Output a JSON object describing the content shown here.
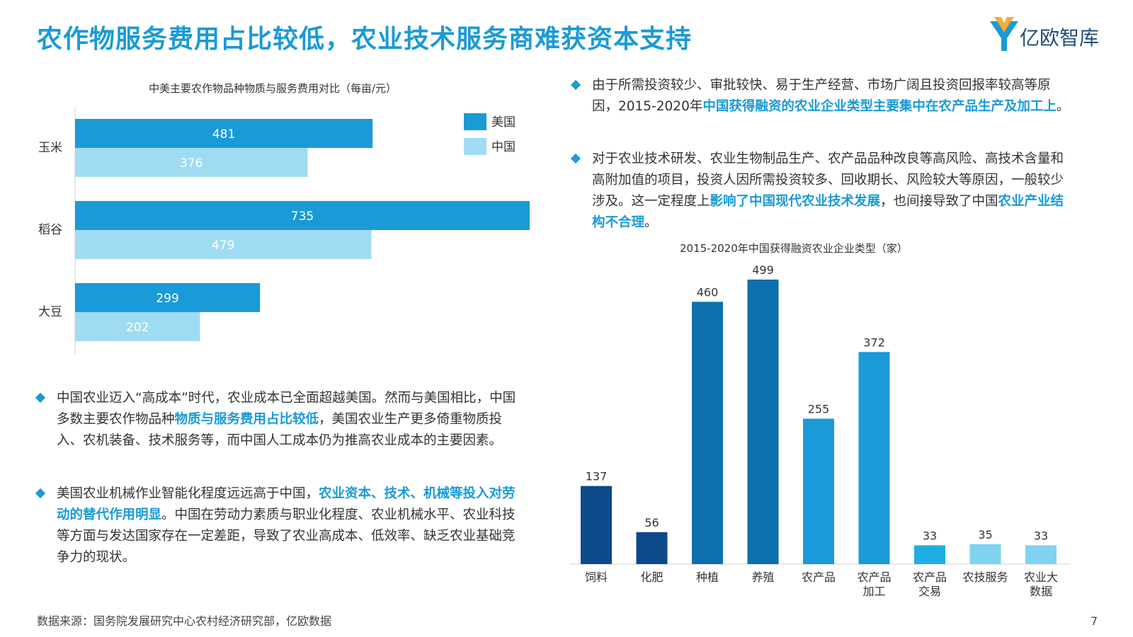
{
  "page": {
    "title": "农作物服务费用占比较低，农业技术服务商难获资本支持",
    "logo_text": "亿欧智库",
    "source": "数据来源：国务院发展研究中心农村经济研究部，亿欧数据",
    "page_number": "7",
    "colors": {
      "accent": "#1a9ad6",
      "usa": "#1a9ad6",
      "china": "#9fdcf2"
    }
  },
  "left_bullets": [
    {
      "parts": [
        {
          "text": "中国农业迈入“高成本”时代，农业成本已全面超越美国。然而与美国相比，中国多数主要农作物品种",
          "hl": false
        },
        {
          "text": "物质与服务费用占比较低",
          "hl": true
        },
        {
          "text": "，美国农业生产更多倚重物质投入、农机装备、技术服务等，而中国人工成本仍为推高农业成本的主要因素。",
          "hl": false
        }
      ]
    },
    {
      "parts": [
        {
          "text": "美国农业机械作业智能化程度远远高于中国，",
          "hl": false
        },
        {
          "text": "农业资本、技术、机械等投入对劳动的替代作用明显",
          "hl": true
        },
        {
          "text": "。中国在劳动力素质与职业化程度、农业机械水平、农业科技等方面与发达国家存在一定差距，导致了农业高成本、低效率、缺乏农业基础竞争力的现状。",
          "hl": false
        }
      ]
    }
  ],
  "right_bullets": [
    {
      "parts": [
        {
          "text": "由于所需投资较少、审批较快、易于生产经营、市场广阔且投资回报率较高等原因，2015-2020年",
          "hl": false
        },
        {
          "text": "中国获得融资的农业企业类型主要集中在农产品生产及加工上",
          "hl": true
        },
        {
          "text": "。",
          "hl": false
        }
      ]
    },
    {
      "parts": [
        {
          "text": "对于农业技术研发、农业生物制品生产、农产品品种改良等高风险、高技术含量和高附加值的项目，投资人因所需投资较多、回收期长、风险较大等原因，一般较少涉及。这一定程度上",
          "hl": false
        },
        {
          "text": "影响了中国现代农业技术发展",
          "hl": true
        },
        {
          "text": "，也间接导致了中国",
          "hl": false
        },
        {
          "text": "农业产业结构不合理",
          "hl": true
        },
        {
          "text": "。",
          "hl": false
        }
      ]
    }
  ],
  "chart_data": [
    {
      "type": "bar",
      "orientation": "horizontal",
      "title": "中美主要农作物品种物质与服务费用对比（每亩/元）",
      "categories": [
        "玉米",
        "稻谷",
        "大豆"
      ],
      "series": [
        {
          "name": "美国",
          "values": [
            481,
            735,
            299
          ],
          "color": "#1a9ad6"
        },
        {
          "name": "中国",
          "values": [
            376,
            479,
            202
          ],
          "color": "#9fdcf2"
        }
      ],
      "xlim": [
        0,
        735
      ],
      "legend": "top-right",
      "grid": false
    },
    {
      "type": "bar",
      "orientation": "vertical",
      "title": "2015-2020年中国获得融资农业企业类型（家）",
      "categories": [
        "饲料",
        "化肥",
        "种植",
        "养殖",
        "农产品",
        "农产品\n加工",
        "农产品\n交易",
        "农技服务",
        "农业大\n数据"
      ],
      "values": [
        137,
        56,
        460,
        499,
        255,
        372,
        33,
        35,
        33
      ],
      "colors": [
        "#0d4a8a",
        "#0d4a8a",
        "#0e6fae",
        "#0e6fae",
        "#1a9ad6",
        "#1a9ad6",
        "#1faee3",
        "#7fd3f0",
        "#7fd3f0"
      ],
      "ylim": [
        0,
        499
      ],
      "grid": false
    }
  ]
}
